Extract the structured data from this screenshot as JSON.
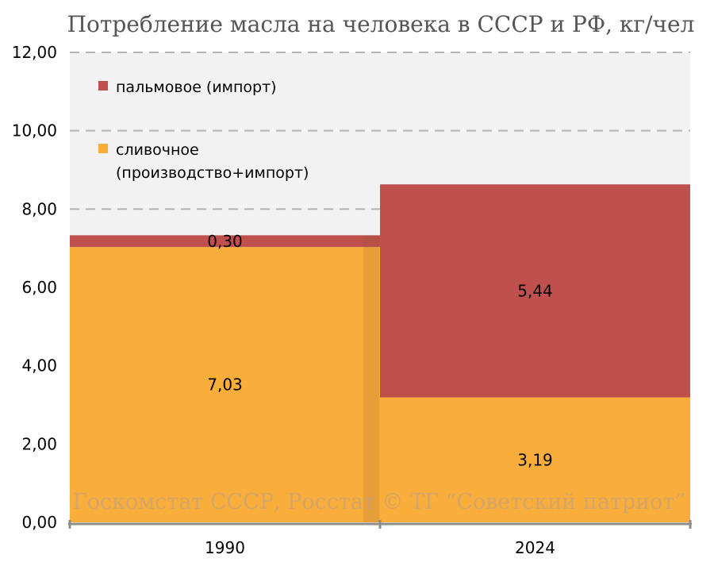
{
  "chart_data": {
    "type": "bar",
    "stacked": true,
    "title": "Потребление масла на человека в СССР и РФ, кг/чел",
    "categories": [
      "1990",
      "2024"
    ],
    "series": [
      {
        "name": "сливочное (производство+импорт)",
        "values": [
          7.03,
          3.19
        ],
        "labels": [
          "7,03",
          "3,19"
        ],
        "color": "#f9ae3b"
      },
      {
        "name": "пальмовое (импорт)",
        "values": [
          0.3,
          5.44
        ],
        "labels": [
          "0,30",
          "5,44"
        ],
        "color": "#c0504d"
      }
    ],
    "ylim": [
      0,
      12
    ],
    "yticks": [
      "0,00",
      "2,00",
      "4,00",
      "6,00",
      "8,00",
      "10,00",
      "12,00"
    ],
    "grid": true,
    "legend_position": "top-left",
    "legend": {
      "palm": "пальмовое (импорт)",
      "butter_line1": "сливочное",
      "butter_line2": "(производство+импорт)"
    },
    "watermark": "Госкомстат СССР, Росстат © ТГ “Советский патриот”"
  }
}
